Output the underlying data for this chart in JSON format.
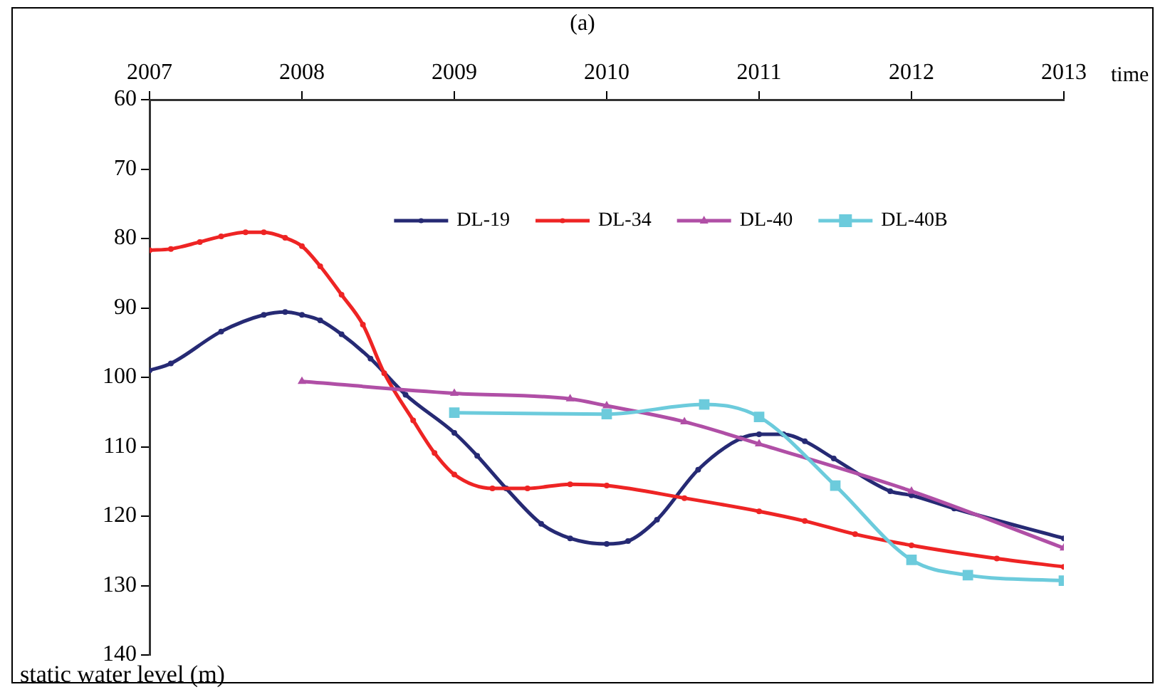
{
  "chart_data": {
    "type": "line",
    "title": "(a)",
    "xlabel": "time",
    "ylabel": "static water level (m)",
    "xlim": [
      2007,
      2013
    ],
    "xticks": [
      2007,
      2008,
      2009,
      2010,
      2011,
      2012,
      2013
    ],
    "ylim": [
      140,
      60
    ],
    "yticks": [
      60,
      70,
      80,
      90,
      100,
      110,
      120,
      130,
      140
    ],
    "grid": false,
    "legend": "top",
    "line_style": "solid",
    "series": [
      {
        "name": "DL-19",
        "color": "#262a74",
        "marker": "circle",
        "x": [
          2007,
          2007.14,
          2007.47,
          2007.75,
          2007.89,
          2008,
          2008.12,
          2008.26,
          2008.45,
          2008.68,
          2009,
          2009.15,
          2009.34,
          2009.57,
          2009.76,
          2010,
          2010.14,
          2010.33,
          2010.6,
          2010.88,
          2011,
          2011.16,
          2011.3,
          2011.49,
          2011.86,
          2012,
          2012.28,
          2013
        ],
        "values": [
          99.0,
          98.0,
          93.4,
          91.0,
          90.6,
          91.0,
          91.8,
          93.8,
          97.3,
          102.5,
          108.0,
          111.3,
          116.0,
          121.1,
          123.2,
          124.0,
          123.6,
          120.5,
          113.3,
          108.8,
          108.2,
          108.2,
          109.2,
          111.7,
          116.4,
          117.0,
          118.9,
          123.2
        ]
      },
      {
        "name": "DL-34",
        "color": "#ee2424",
        "marker": "circle",
        "x": [
          2007,
          2007.14,
          2007.33,
          2007.47,
          2007.63,
          2007.75,
          2007.89,
          2008,
          2008.12,
          2008.26,
          2008.4,
          2008.54,
          2008.73,
          2008.87,
          2009,
          2009.25,
          2009.48,
          2009.76,
          2010,
          2010.51,
          2011,
          2011.3,
          2011.63,
          2012,
          2012.56,
          2013
        ],
        "values": [
          81.7,
          81.5,
          80.5,
          79.7,
          79.1,
          79.1,
          79.9,
          81.1,
          84.0,
          88.1,
          92.4,
          99.4,
          106.2,
          110.9,
          114.0,
          116.0,
          116.0,
          115.4,
          115.6,
          117.4,
          119.3,
          120.7,
          122.6,
          124.2,
          126.1,
          127.3
        ]
      },
      {
        "name": "DL-40",
        "color": "#b04fa6",
        "marker": "triangle",
        "x": [
          2008,
          2009,
          2009.76,
          2010,
          2010.51,
          2011,
          2012,
          2013
        ],
        "values": [
          100.6,
          102.3,
          103.1,
          104.1,
          106.4,
          109.6,
          116.4,
          124.6
        ]
      },
      {
        "name": "DL-40B",
        "color": "#6ccbdc",
        "marker": "square",
        "x": [
          2009,
          2010,
          2010.64,
          2011,
          2011.5,
          2012,
          2012.37,
          2013
        ],
        "values": [
          105.1,
          105.3,
          103.9,
          105.7,
          115.6,
          126.3,
          128.5,
          129.3
        ]
      }
    ]
  }
}
